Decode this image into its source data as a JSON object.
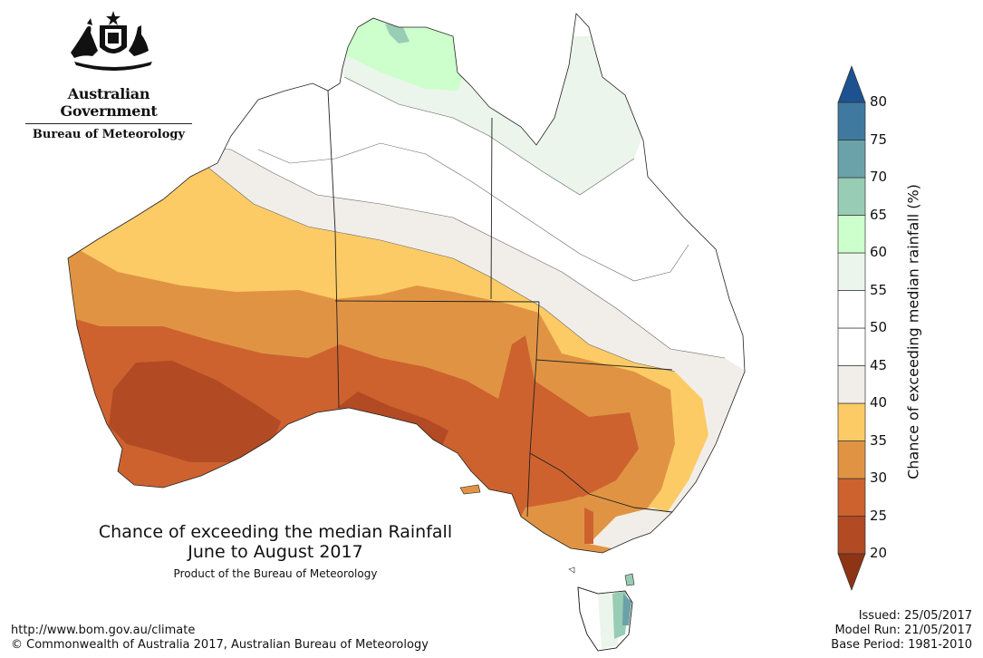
{
  "header": {
    "government": "Australian Government",
    "bureau": "Bureau of Meteorology"
  },
  "title": {
    "line1": "Chance of exceeding the median Rainfall",
    "line2": "June to August 2017",
    "subtitle": "Product of the Bureau of Meteorology"
  },
  "legend": {
    "title": "Chance of exceeding median rainfall (%)",
    "labels": [
      "80",
      "75",
      "70",
      "65",
      "60",
      "55",
      "50",
      "45",
      "40",
      "35",
      "30",
      "25",
      "20"
    ],
    "bands": [
      {
        "range": "20-25",
        "color": "#B24A24"
      },
      {
        "range": "25-30",
        "color": "#CD622F"
      },
      {
        "range": "30-35",
        "color": "#E09443"
      },
      {
        "range": "35-40",
        "color": "#FDCB66"
      },
      {
        "range": "40-45",
        "color": "#F1EEE9"
      },
      {
        "range": "45-50",
        "color": "#FFFFFF"
      },
      {
        "range": "50-55",
        "color": "#FFFFFF"
      },
      {
        "range": "55-60",
        "color": "#EBF5EB"
      },
      {
        "range": "60-65",
        "color": "#CCFFCC"
      },
      {
        "range": "65-70",
        "color": "#99CCB4"
      },
      {
        "range": "70-75",
        "color": "#6BA2A9"
      },
      {
        "range": "75-80",
        "color": "#40799F"
      }
    ],
    "low_arrow_color": "#8C3414",
    "high_arrow_color": "#1D5290"
  },
  "footer": {
    "url": "http://www.bom.gov.au/climate",
    "copyright": "© Commonwealth of Australia 2017, Australian Bureau of Meteorology",
    "issued": "Issued: 25/05/2017",
    "model_run": "Model Run: 21/05/2017",
    "base_period": "Base Period: 1981-2010"
  }
}
